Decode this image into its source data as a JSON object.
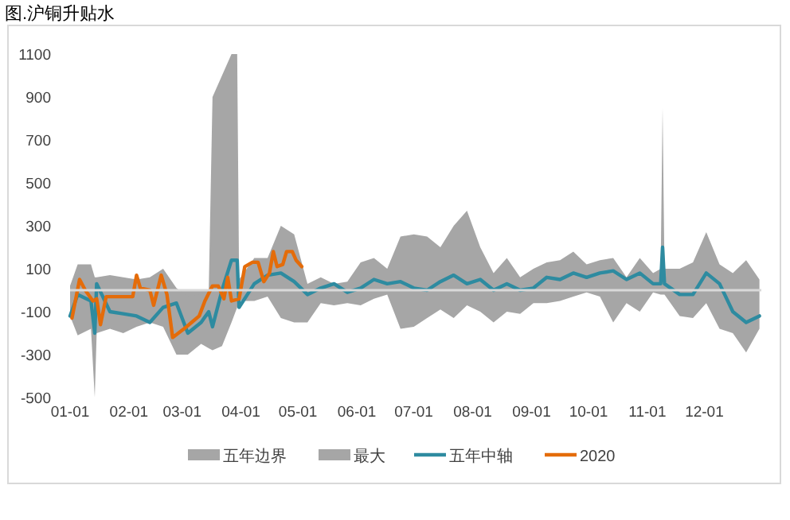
{
  "chart_data": {
    "type": "area",
    "title": "图.沪铜升贴水",
    "x": [
      "--01-01",
      "--01-05",
      "--01-12",
      "--01-14",
      "--01-15",
      "--01-22",
      "--01-29",
      "--02-05",
      "--02-12",
      "--02-19",
      "--02-26",
      "--03-04",
      "--03-11",
      "--03-15",
      "--03-17",
      "--03-22",
      "--03-27",
      "--03-30",
      "--03-31",
      "--04-08",
      "--04-15",
      "--04-22",
      "--04-29",
      "--05-06",
      "--05-13",
      "--05-20",
      "--05-27",
      "--06-03",
      "--06-10",
      "--06-17",
      "--06-24",
      "--07-01",
      "--07-08",
      "--07-15",
      "--07-22",
      "--07-29",
      "--08-05",
      "--08-12",
      "--08-19",
      "--08-26",
      "--09-02",
      "--09-09",
      "--09-16",
      "--09-23",
      "--09-30",
      "--10-07",
      "--10-14",
      "--10-21",
      "--10-28",
      "--11-04",
      "--11-08",
      "--11-09",
      "--11-10",
      "--11-18",
      "--11-25",
      "--12-02",
      "--12-09",
      "--12-16",
      "--12-23",
      "--12-30"
    ],
    "series": [
      {
        "name": "五年边界",
        "color": "#a6a6a6",
        "values": [
          -120,
          -210,
          -180,
          -500,
          -200,
          -180,
          -200,
          -170,
          -150,
          -170,
          -300,
          -300,
          -250,
          -270,
          -280,
          -260,
          -150,
          -80,
          -50,
          -50,
          -30,
          -130,
          -150,
          -150,
          -60,
          -70,
          -60,
          -70,
          -40,
          -20,
          -180,
          -170,
          -130,
          -90,
          -130,
          -70,
          -100,
          -150,
          -100,
          -110,
          -60,
          -60,
          -50,
          -30,
          -10,
          -30,
          -150,
          -60,
          -100,
          -10,
          -20,
          -20,
          -20,
          -120,
          -130,
          -60,
          -180,
          -200,
          -290,
          -180
        ]
      },
      {
        "name": "最大",
        "color": "#a6a6a6",
        "values": [
          20,
          120,
          120,
          60,
          60,
          70,
          60,
          50,
          60,
          100,
          10,
          -30,
          -20,
          -10,
          900,
          1000,
          1100,
          1100,
          50,
          150,
          150,
          300,
          260,
          30,
          60,
          30,
          40,
          130,
          150,
          100,
          250,
          260,
          250,
          200,
          300,
          370,
          200,
          80,
          150,
          60,
          100,
          130,
          140,
          180,
          120,
          140,
          150,
          60,
          150,
          80,
          100,
          850,
          100,
          100,
          130,
          270,
          120,
          80,
          140,
          50
        ]
      },
      {
        "name": "五年中轴",
        "type": "line",
        "color": "#2e8ba0",
        "values": [
          -120,
          -20,
          -50,
          -200,
          30,
          -100,
          -110,
          -120,
          -150,
          -80,
          -60,
          -200,
          -150,
          -100,
          -170,
          0,
          140,
          140,
          -80,
          30,
          70,
          80,
          40,
          -20,
          10,
          30,
          -10,
          10,
          50,
          30,
          40,
          10,
          0,
          40,
          70,
          30,
          50,
          0,
          30,
          0,
          10,
          60,
          50,
          80,
          60,
          80,
          90,
          50,
          80,
          30,
          30,
          200,
          30,
          -20,
          -20,
          80,
          30,
          -100,
          -150,
          -120
        ]
      },
      {
        "name": "2020",
        "type": "line",
        "color": "#e46c0a",
        "x": [
          "--01-02",
          "--01-06",
          "--01-09",
          "--01-13",
          "--01-15",
          "--01-17",
          "--01-20",
          "--01-24",
          "--02-03",
          "--02-05",
          "--02-07",
          "--02-12",
          "--02-14",
          "--02-18",
          "--02-21",
          "--02-24",
          "--03-02",
          "--03-06",
          "--03-10",
          "--03-13",
          "--03-17",
          "--03-20",
          "--03-23",
          "--03-25",
          "--03-27",
          "--03-31",
          "--04-03",
          "--04-07",
          "--04-10",
          "--04-13",
          "--04-16",
          "--04-18",
          "--04-20",
          "--04-23",
          "--04-25",
          "--04-28",
          "--04-30",
          "--05-03"
        ],
        "values": [
          -130,
          50,
          0,
          -50,
          -40,
          -160,
          -30,
          -30,
          -30,
          70,
          10,
          0,
          -70,
          70,
          -20,
          -220,
          -180,
          -150,
          -120,
          -50,
          20,
          20,
          -40,
          60,
          -50,
          -40,
          110,
          130,
          130,
          40,
          80,
          180,
          110,
          120,
          180,
          180,
          140,
          110
        ]
      }
    ],
    "xlim": [
      "--01-01",
      "--12-31"
    ],
    "xticks": [
      {
        "value": "--01-01",
        "label": "01-01"
      },
      {
        "value": "--02-01",
        "label": "02-01"
      },
      {
        "value": "--03-01",
        "label": "03-01"
      },
      {
        "value": "--04-01",
        "label": "04-01"
      },
      {
        "value": "--05-01",
        "label": "05-01"
      },
      {
        "value": "--06-01",
        "label": "06-01"
      },
      {
        "value": "--07-01",
        "label": "07-01"
      },
      {
        "value": "--08-01",
        "label": "08-01"
      },
      {
        "value": "--09-01",
        "label": "09-01"
      },
      {
        "value": "--10-01",
        "label": "10-01"
      },
      {
        "value": "--11-01",
        "label": "11-01"
      },
      {
        "value": "--12-01",
        "label": "12-01"
      }
    ],
    "ylim": [
      -500,
      1100
    ],
    "yticks": [
      -500,
      -300,
      -100,
      100,
      300,
      500,
      700,
      900,
      1100
    ],
    "grid": false,
    "legend": "bottom",
    "line_style": "solid",
    "marker": "none"
  }
}
